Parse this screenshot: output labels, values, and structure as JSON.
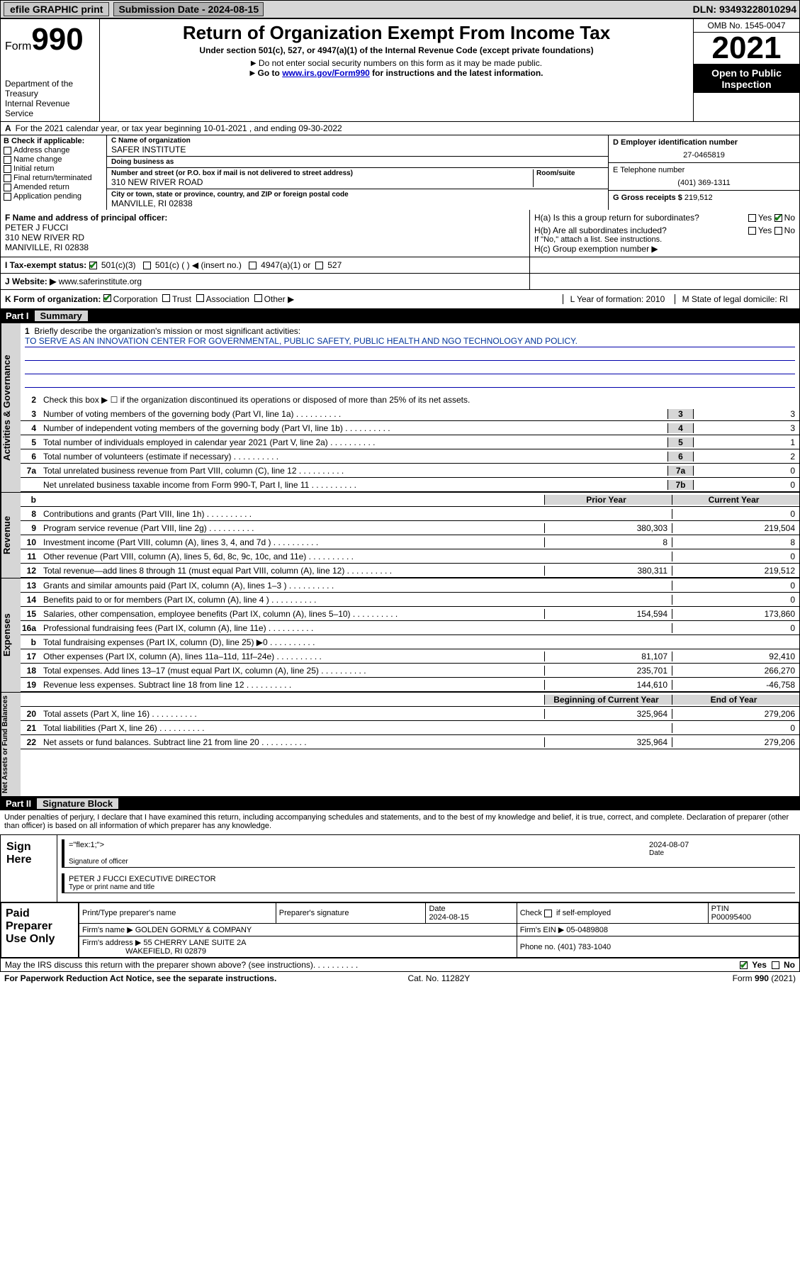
{
  "colors": {
    "topbar_bg": "#d6d6d6",
    "black": "#000000",
    "link": "#0000cc",
    "check_green": "#1a7f1a",
    "mission_line": "#0033aa",
    "shade": "#d6d6d6"
  },
  "topbar": {
    "efile": "efile GRAPHIC print",
    "submission_label": "Submission Date - 2024-08-15",
    "dln": "DLN: 93493228010294"
  },
  "header": {
    "form_label": "Form",
    "form_number": "990",
    "dept": "Department of the Treasury",
    "irs": "Internal Revenue Service",
    "title": "Return of Organization Exempt From Income Tax",
    "subtitle": "Under section 501(c), 527, or 4947(a)(1) of the Internal Revenue Code (except private foundations)",
    "note1": "Do not enter social security numbers on this form as it may be made public.",
    "note2_pre": "Go to ",
    "note2_link": "www.irs.gov/Form990",
    "note2_post": " for instructions and the latest information.",
    "omb": "OMB No. 1545-0047",
    "year": "2021",
    "inspect": "Open to Public Inspection"
  },
  "row_a": {
    "label": "A",
    "text": "For the 2021 calendar year, or tax year beginning 10-01-2021  , and ending 09-30-2022"
  },
  "col_b": {
    "header": "B Check if applicable:",
    "items": [
      "Address change",
      "Name change",
      "Initial return",
      "Final return/terminated",
      "Amended return",
      "Application pending"
    ]
  },
  "col_c": {
    "name_label": "C Name of organization",
    "name_val": "SAFER INSTITUTE",
    "dba_label": "Doing business as",
    "dba_val": "",
    "addr_label": "Number and street (or P.O. box if mail is not delivered to street address)",
    "room_label": "Room/suite",
    "addr_val": "310 NEW RIVER ROAD",
    "city_label": "City or town, state or province, country, and ZIP or foreign postal code",
    "city_val": "MANVILLE, RI  02838"
  },
  "col_d": {
    "ein_label": "D Employer identification number",
    "ein_val": "27-0465819",
    "tel_label": "E Telephone number",
    "tel_val": "(401) 369-1311",
    "gross_label": "G Gross receipts $",
    "gross_val": "219,512"
  },
  "row_f": {
    "label": "F  Name and address of principal officer:",
    "name": "PETER J FUCCI",
    "addr1": "310 NEW RIVER RD",
    "addr2": "MANIVILLE, RI  02838"
  },
  "row_h": {
    "ha": "H(a)  Is this a group return for subordinates?",
    "ha_yes": "Yes",
    "ha_no": "No",
    "hb": "H(b)  Are all subordinates included?",
    "hb_yes": "Yes",
    "hb_no": "No",
    "hb_note": "If \"No,\" attach a list. See instructions.",
    "hc": "H(c)  Group exemption number ▶"
  },
  "row_i": {
    "label": "I  Tax-exempt status:",
    "opt1": "501(c)(3)",
    "opt2": "501(c) (  ) ◀ (insert no.)",
    "opt3": "4947(a)(1) or",
    "opt4": "527"
  },
  "row_j": {
    "label": "J  Website: ▶",
    "val": "www.saferinstitute.org"
  },
  "row_k": {
    "label": "K Form of organization:",
    "opts": [
      "Corporation",
      "Trust",
      "Association",
      "Other ▶"
    ],
    "l": "L Year of formation: 2010",
    "m": "M State of legal domicile: RI"
  },
  "part1": {
    "num": "Part I",
    "title": "Summary"
  },
  "summary": {
    "line1_label": "Briefly describe the organization's mission or most significant activities:",
    "line1_mission": "TO SERVE AS AN INNOVATION CENTER FOR GOVERNMENTAL, PUBLIC SAFETY, PUBLIC HEALTH AND NGO TECHNOLOGY AND POLICY.",
    "line2": "Check this box ▶ ☐  if the organization discontinued its operations or disposed of more than 25% of its net assets.",
    "governance": [
      {
        "n": "3",
        "desc": "Number of voting members of the governing body (Part VI, line 1a)",
        "key": "3",
        "val": "3"
      },
      {
        "n": "4",
        "desc": "Number of independent voting members of the governing body (Part VI, line 1b)",
        "key": "4",
        "val": "3"
      },
      {
        "n": "5",
        "desc": "Total number of individuals employed in calendar year 2021 (Part V, line 2a)",
        "key": "5",
        "val": "1"
      },
      {
        "n": "6",
        "desc": "Total number of volunteers (estimate if necessary)",
        "key": "6",
        "val": "2"
      },
      {
        "n": "7a",
        "desc": "Total unrelated business revenue from Part VIII, column (C), line 12",
        "key": "7a",
        "val": "0"
      },
      {
        "n": "",
        "desc": "Net unrelated business taxable income from Form 990-T, Part I, line 11",
        "key": "7b",
        "val": "0"
      }
    ],
    "colhdr_b": "b",
    "colhdr_prior": "Prior Year",
    "colhdr_current": "Current Year",
    "revenue": [
      {
        "n": "8",
        "desc": "Contributions and grants (Part VIII, line 1h)",
        "p": "",
        "c": "0"
      },
      {
        "n": "9",
        "desc": "Program service revenue (Part VIII, line 2g)",
        "p": "380,303",
        "c": "219,504"
      },
      {
        "n": "10",
        "desc": "Investment income (Part VIII, column (A), lines 3, 4, and 7d )",
        "p": "8",
        "c": "8"
      },
      {
        "n": "11",
        "desc": "Other revenue (Part VIII, column (A), lines 5, 6d, 8c, 9c, 10c, and 11e)",
        "p": "",
        "c": "0"
      },
      {
        "n": "12",
        "desc": "Total revenue—add lines 8 through 11 (must equal Part VIII, column (A), line 12)",
        "p": "380,311",
        "c": "219,512"
      }
    ],
    "expenses": [
      {
        "n": "13",
        "desc": "Grants and similar amounts paid (Part IX, column (A), lines 1–3 )",
        "p": "",
        "c": "0"
      },
      {
        "n": "14",
        "desc": "Benefits paid to or for members (Part IX, column (A), line 4 )",
        "p": "",
        "c": "0"
      },
      {
        "n": "15",
        "desc": "Salaries, other compensation, employee benefits (Part IX, column (A), lines 5–10)",
        "p": "154,594",
        "c": "173,860"
      },
      {
        "n": "16a",
        "desc": "Professional fundraising fees (Part IX, column (A), line 11e)",
        "p": "",
        "c": "0"
      },
      {
        "n": "b",
        "desc": "Total fundraising expenses (Part IX, column (D), line 25) ▶0",
        "p": "",
        "c": "",
        "shade": true
      },
      {
        "n": "17",
        "desc": "Other expenses (Part IX, column (A), lines 11a–11d, 11f–24e)",
        "p": "81,107",
        "c": "92,410"
      },
      {
        "n": "18",
        "desc": "Total expenses. Add lines 13–17 (must equal Part IX, column (A), line 25)",
        "p": "235,701",
        "c": "266,270"
      },
      {
        "n": "19",
        "desc": "Revenue less expenses. Subtract line 18 from line 12",
        "p": "144,610",
        "c": "-46,758"
      }
    ],
    "colhdr_begin": "Beginning of Current Year",
    "colhdr_end": "End of Year",
    "netassets": [
      {
        "n": "20",
        "desc": "Total assets (Part X, line 16)",
        "p": "325,964",
        "c": "279,206"
      },
      {
        "n": "21",
        "desc": "Total liabilities (Part X, line 26)",
        "p": "",
        "c": "0"
      },
      {
        "n": "22",
        "desc": "Net assets or fund balances. Subtract line 21 from line 20",
        "p": "325,964",
        "c": "279,206"
      }
    ],
    "vtabs": {
      "gov": "Activities & Governance",
      "rev": "Revenue",
      "exp": "Expenses",
      "net": "Net Assets or Fund Balances"
    }
  },
  "part2": {
    "num": "Part II",
    "title": "Signature Block"
  },
  "sig": {
    "intro": "Under penalties of perjury, I declare that I have examined this return, including accompanying schedules and statements, and to the best of my knowledge and belief, it is true, correct, and complete. Declaration of preparer (other than officer) is based on all information of which preparer has any knowledge.",
    "sign_here": "Sign Here",
    "sig_officer": "Signature of officer",
    "sig_date": "2024-08-07",
    "date_label": "Date",
    "officer_name": "PETER J FUCCI EXECUTIVE DIRECTOR",
    "officer_label": "Type or print name and title"
  },
  "prep": {
    "label": "Paid Preparer Use Only",
    "h1": "Print/Type preparer's name",
    "h2": "Preparer's signature",
    "h3": "Date",
    "date": "2024-08-15",
    "h4_pre": "Check",
    "h4_post": "if self-employed",
    "h5": "PTIN",
    "ptin": "P00095400",
    "firm_name_label": "Firm's name   ▶",
    "firm_name": "GOLDEN GORMLY & COMPANY",
    "firm_ein_label": "Firm's EIN ▶",
    "firm_ein": "05-0489808",
    "firm_addr_label": "Firm's address ▶",
    "firm_addr1": "55 CHERRY LANE SUITE 2A",
    "firm_addr2": "WAKEFIELD, RI  02879",
    "phone_label": "Phone no.",
    "phone": "(401) 783-1040"
  },
  "footer": {
    "discuss": "May the IRS discuss this return with the preparer shown above? (see instructions)",
    "yes": "Yes",
    "no": "No",
    "pra": "For Paperwork Reduction Act Notice, see the separate instructions.",
    "cat": "Cat. No. 11282Y",
    "form": "Form 990 (2021)"
  }
}
